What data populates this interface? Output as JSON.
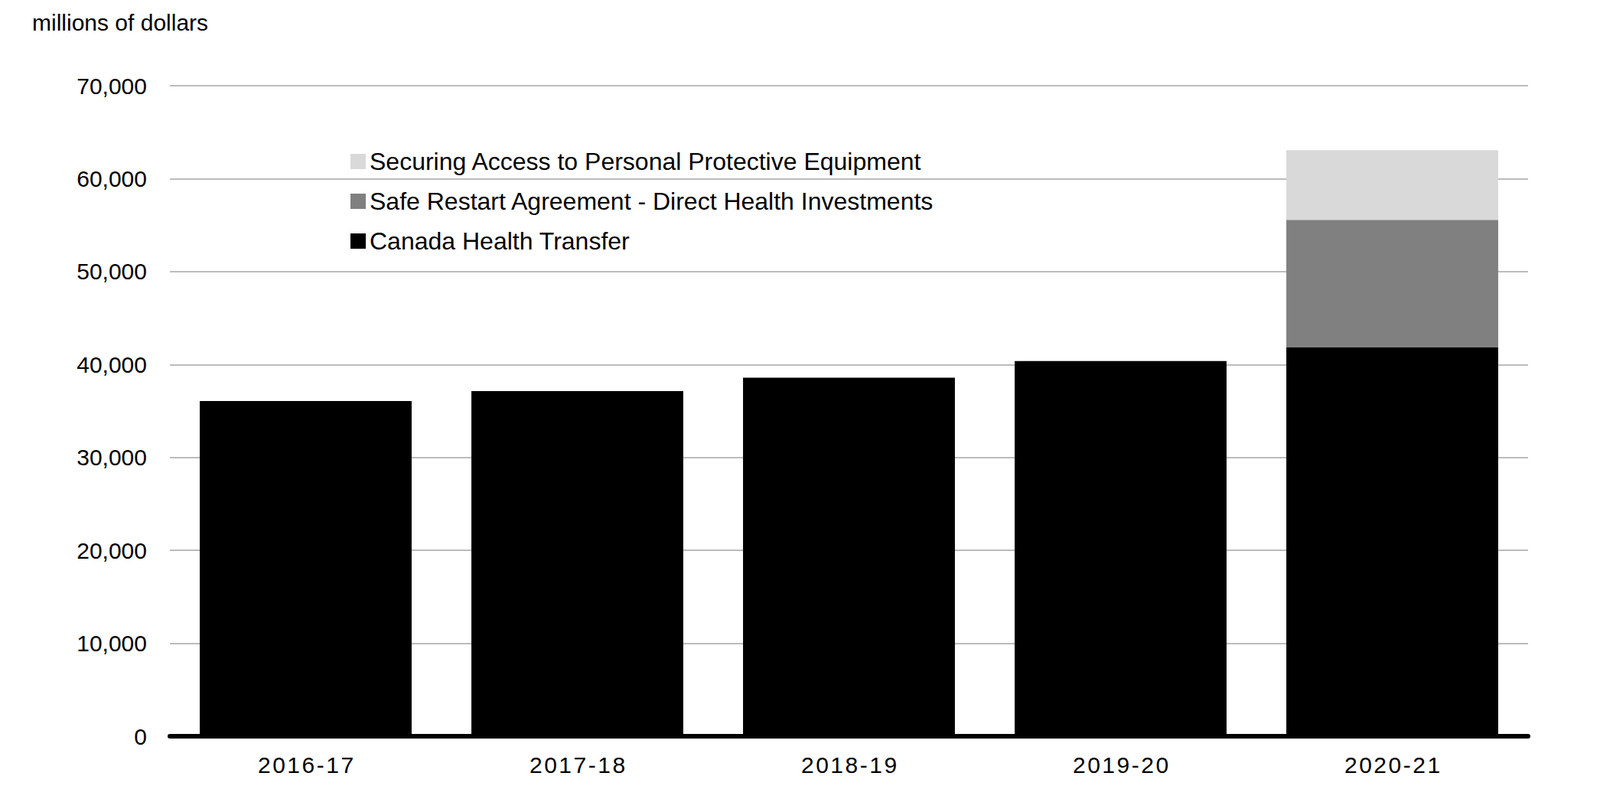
{
  "chart_data": {
    "type": "bar",
    "ylabel": "millions of dollars",
    "categories": [
      "2016-17",
      "2017-18",
      "2018-19",
      "2019-20",
      "2020-21"
    ],
    "series": [
      {
        "name": "Canada Health Transfer",
        "color": "#000000",
        "values": [
          36068,
          37150,
          38584,
          40373,
          41870
        ]
      },
      {
        "name": "Safe Restart Agreement - Direct Health Investments",
        "color": "#808080",
        "values": [
          null,
          null,
          null,
          null,
          13700
        ]
      },
      {
        "name": "Securing Access to Personal Protective Equipment",
        "color": "#d9d9d9",
        "values": [
          null,
          null,
          null,
          null,
          7500
        ]
      }
    ],
    "stacked": true,
    "ylim": [
      0,
      70000
    ],
    "yticks": [
      0,
      {
        "value": 10000,
        "label": "10,000"
      },
      {
        "value": 20000,
        "label": "20,000"
      },
      {
        "value": 30000,
        "label": "30,000"
      },
      {
        "value": 40000,
        "label": "40,000"
      },
      {
        "value": 50000,
        "label": "50,000"
      },
      {
        "value": 60000,
        "label": "60,000"
      },
      {
        "value": 70000,
        "label": "70,000"
      }
    ],
    "grid": true,
    "legend": "upper left"
  }
}
